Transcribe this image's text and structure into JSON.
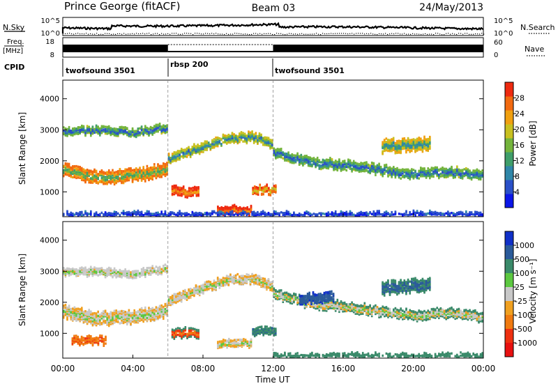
{
  "header": {
    "station": "Prince George (fitACF)",
    "beam": "Beam 03",
    "date": "24/May/2013"
  },
  "top_strips": {
    "nsky": {
      "label": "N.Sky",
      "ticks": [
        "10^5",
        "10^0"
      ]
    },
    "nsearch": {
      "label": "N.Search",
      "ticks": [
        "10^5",
        "10^0"
      ]
    },
    "freq": {
      "label_line1": "Freq.",
      "label_line2": "[MHz]",
      "ticks": [
        "18",
        "8"
      ]
    },
    "nave": {
      "label": "Nave",
      "ticks": [
        "60",
        "0"
      ]
    },
    "cpid": {
      "label": "CPID",
      "segments": [
        {
          "name": "twofsound 3501",
          "start_hour": 0,
          "end_hour": 6
        },
        {
          "name": "rbsp 200",
          "start_hour": 6,
          "end_hour": 12
        },
        {
          "name": "twofsound 3501",
          "start_hour": 12,
          "end_hour": 24
        }
      ]
    }
  },
  "chart_data": [
    {
      "type": "heatmap",
      "quantity": "power",
      "ylabel": "Slant Range [km]",
      "xlim": [
        0,
        24
      ],
      "ylim": [
        200,
        4600
      ],
      "yticks": [
        1000,
        2000,
        3000,
        4000
      ],
      "colorbar": {
        "label": "Power [dB]",
        "range": [
          0,
          32
        ],
        "ticks": [
          4,
          8,
          12,
          16,
          20,
          24,
          28
        ],
        "colors": [
          "#0b16e8",
          "#2a50c8",
          "#2f86a8",
          "#3f9e6a",
          "#74b43c",
          "#c8c020",
          "#f0a010",
          "#f26a10",
          "#ee2a10"
        ]
      },
      "bands": [
        {
          "t": [
            0,
            2,
            4,
            5.5,
            6
          ],
          "r": [
            1750,
            1500,
            1560,
            1720,
            1800
          ],
          "w": 380,
          "v": [
            14,
            24,
            26
          ]
        },
        {
          "t": [
            0,
            2,
            4,
            6
          ],
          "r": [
            3000,
            3020,
            2960,
            3100
          ],
          "w": 220,
          "v": [
            6,
            12,
            16
          ]
        },
        {
          "t": [
            6,
            8,
            9.5,
            11,
            12
          ],
          "r": [
            2100,
            2500,
            2750,
            2800,
            2500
          ],
          "w": 260,
          "v": [
            8,
            16,
            20
          ]
        },
        {
          "t": [
            12,
            14,
            16,
            18,
            20,
            22,
            24
          ],
          "r": [
            2300,
            2000,
            1900,
            1750,
            1600,
            1700,
            1550
          ],
          "w": 300,
          "v": [
            6,
            12,
            16
          ]
        },
        {
          "t": [
            6.2,
            7.8
          ],
          "r": [
            1050,
            1050
          ],
          "w": 260,
          "v": [
            24,
            28,
            30
          ]
        },
        {
          "t": [
            8.8,
            10.8
          ],
          "r": [
            450,
            450
          ],
          "w": 220,
          "v": [
            26,
            30,
            32
          ]
        },
        {
          "t": [
            10.8,
            12.2
          ],
          "r": [
            1100,
            1100
          ],
          "w": 240,
          "v": [
            20,
            26,
            28
          ]
        },
        {
          "t": [
            18.2,
            21
          ],
          "r": [
            2500,
            2600
          ],
          "w": 380,
          "v": [
            10,
            18,
            22
          ]
        },
        {
          "t": [
            0,
            4,
            8,
            12,
            16,
            20,
            24
          ],
          "r": [
            300,
            320,
            300,
            310,
            300,
            320,
            300
          ],
          "w": 120,
          "v": [
            2,
            4,
            6
          ]
        }
      ]
    },
    {
      "type": "heatmap",
      "quantity": "velocity",
      "ylabel": "Slant Range [km]",
      "xlim": [
        0,
        24
      ],
      "ylim": [
        200,
        4600
      ],
      "yticks": [
        1000,
        2000,
        3000,
        4000
      ],
      "colorbar": {
        "label": "Velocity [m s⁻¹]",
        "tick_labels": [
          "1000",
          "500",
          "100",
          "25",
          "-25",
          "-100",
          "-500",
          "-1000"
        ],
        "colors": [
          "#1030c8",
          "#2a5a9a",
          "#3a8a6a",
          "#5cc840",
          "#c8c8c8",
          "#f0a020",
          "#f07a10",
          "#ee3010",
          "#e81010"
        ]
      },
      "bands": [
        {
          "t": [
            0,
            2,
            4,
            5.5,
            6
          ],
          "r": [
            1750,
            1500,
            1560,
            1720,
            1800
          ],
          "w": 380,
          "v": [
            25,
            -25
          ]
        },
        {
          "t": [
            0,
            2,
            4,
            6
          ],
          "r": [
            3000,
            3020,
            2960,
            3100
          ],
          "w": 220,
          "v": [
            25,
            -25,
            10
          ]
        },
        {
          "t": [
            6,
            8,
            9.5,
            11,
            12
          ],
          "r": [
            2100,
            2500,
            2750,
            2800,
            2500
          ],
          "w": 260,
          "v": [
            25,
            -25
          ]
        },
        {
          "t": [
            12,
            14,
            16,
            18,
            20,
            22,
            24
          ],
          "r": [
            2300,
            2000,
            1900,
            1750,
            1600,
            1700,
            1550
          ],
          "w": 300,
          "v": [
            25,
            -25,
            200
          ]
        },
        {
          "t": [
            6.2,
            7.8
          ],
          "r": [
            1050,
            1050
          ],
          "w": 260,
          "v": [
            -300,
            -600,
            120
          ]
        },
        {
          "t": [
            8.8,
            10.8
          ],
          "r": [
            700,
            700
          ],
          "w": 220,
          "v": [
            25,
            -25
          ]
        },
        {
          "t": [
            10.8,
            12.2
          ],
          "r": [
            1100,
            1100
          ],
          "w": 240,
          "v": [
            300,
            600,
            150
          ]
        },
        {
          "t": [
            13.5,
            15.5
          ],
          "r": [
            2150,
            2200
          ],
          "w": 300,
          "v": [
            600,
            800,
            1000
          ]
        },
        {
          "t": [
            18.2,
            21
          ],
          "r": [
            2500,
            2600
          ],
          "w": 380,
          "v": [
            500,
            800,
            300
          ]
        },
        {
          "t": [
            0.5,
            2.5
          ],
          "r": [
            800,
            800
          ],
          "w": 220,
          "v": [
            -300,
            -600,
            -200
          ]
        },
        {
          "t": [
            12,
            16,
            20,
            24
          ],
          "r": [
            300,
            320,
            300,
            310
          ],
          "w": 120,
          "v": [
            150,
            200,
            120
          ]
        }
      ]
    }
  ],
  "xaxis": {
    "label": "Time UT",
    "tick_labels": [
      "00:00",
      "04:00",
      "08:00",
      "12:00",
      "16:00",
      "20:00",
      "00:00"
    ]
  }
}
